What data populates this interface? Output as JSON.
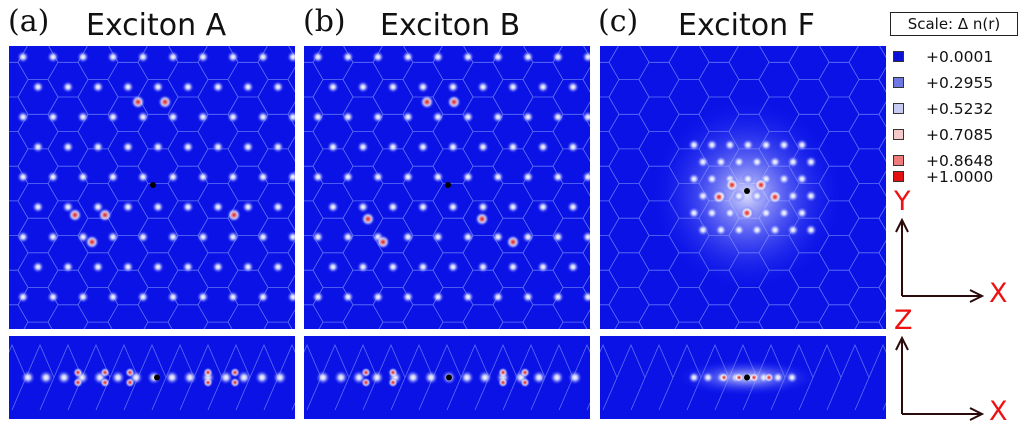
{
  "panels": [
    {
      "label": "(a)",
      "title": "Exciton A"
    },
    {
      "label": "(b)",
      "title": "Exciton B"
    },
    {
      "label": "(c)",
      "title": "Exciton F"
    }
  ],
  "scale": {
    "label": "Scale:  Δ n(r)"
  },
  "legend": [
    {
      "value": "+0.0001",
      "color": "#0b11d6"
    },
    {
      "value": "+0.2955",
      "color": "#6f77e2"
    },
    {
      "value": "+0.5232",
      "color": "#c7caf2"
    },
    {
      "value": "+0.7085",
      "color": "#f5c9c9"
    },
    {
      "value": "+0.8648",
      "color": "#ee7a7a"
    },
    {
      "value": "+1.0000",
      "color": "#e21010"
    }
  ],
  "axes": {
    "top": {
      "vertical": "Y",
      "horizontal": "X"
    },
    "bottom": {
      "vertical": "Z",
      "horizontal": "X"
    }
  }
}
